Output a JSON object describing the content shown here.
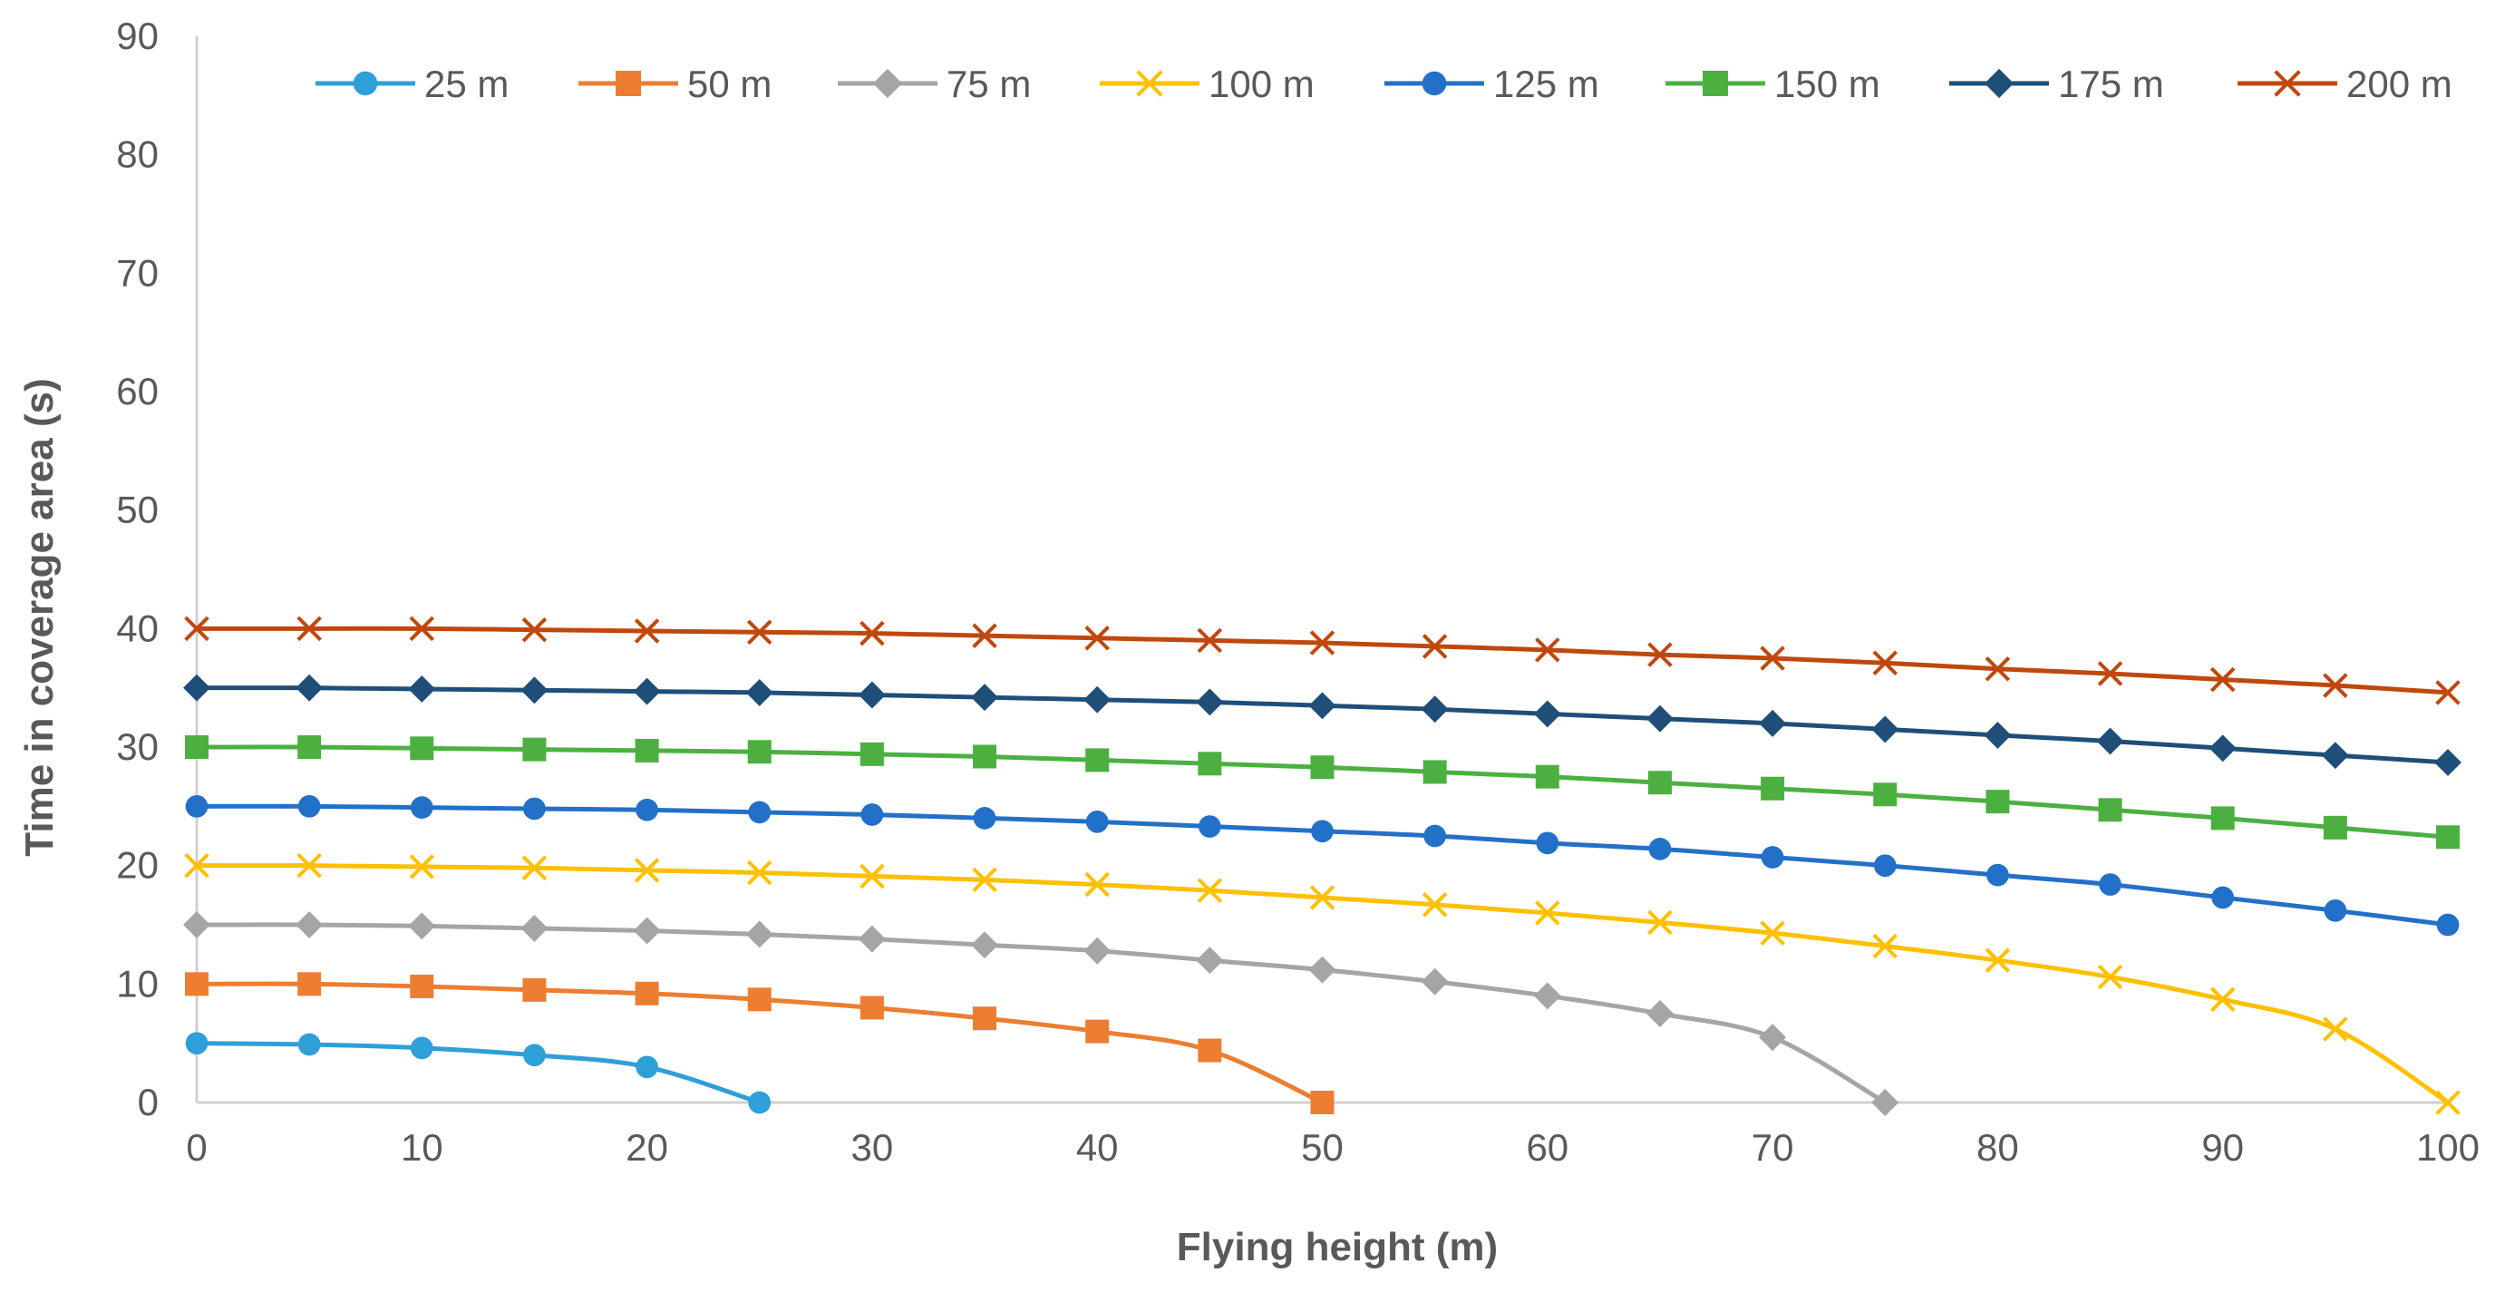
{
  "chart_data": {
    "type": "line",
    "title": "",
    "xlabel": "Flying height (m)",
    "ylabel": "Time in coverage area (s)",
    "xlim": [
      0,
      100
    ],
    "ylim": [
      0,
      90
    ],
    "x_ticks": [
      0,
      10,
      20,
      30,
      40,
      50,
      60,
      70,
      80,
      90,
      100
    ],
    "y_ticks": [
      0,
      10,
      20,
      30,
      40,
      50,
      60,
      70,
      80,
      90
    ],
    "legend_position": "top",
    "grid": false,
    "series": [
      {
        "name": "25 m",
        "color": "#2E9FD8",
        "marker": "circle",
        "x": [
          0,
          5,
          10,
          15,
          20,
          25
        ],
        "values": [
          5.0,
          4.9,
          4.6,
          4.0,
          3.0,
          0
        ]
      },
      {
        "name": "50 m",
        "color": "#ED7D31",
        "marker": "square",
        "x": [
          0,
          5,
          10,
          15,
          20,
          25,
          30,
          35,
          40,
          45,
          50
        ],
        "values": [
          10.0,
          10.0,
          9.8,
          9.5,
          9.2,
          8.7,
          8.0,
          7.1,
          6.0,
          4.4,
          0
        ]
      },
      {
        "name": "75 m",
        "color": "#A5A5A5",
        "marker": "diamond",
        "x": [
          0,
          5,
          10,
          15,
          20,
          25,
          30,
          35,
          40,
          45,
          50,
          55,
          60,
          65,
          70,
          75
        ],
        "values": [
          15.0,
          15.0,
          14.9,
          14.7,
          14.5,
          14.2,
          13.8,
          13.3,
          12.8,
          12.0,
          11.2,
          10.2,
          9.0,
          7.5,
          5.5,
          0
        ]
      },
      {
        "name": "100 m",
        "color": "#FFC000",
        "marker": "x",
        "x": [
          0,
          5,
          10,
          15,
          20,
          25,
          30,
          35,
          40,
          45,
          50,
          55,
          60,
          65,
          70,
          75,
          80,
          85,
          90,
          95,
          100
        ],
        "values": [
          20.0,
          20.0,
          19.9,
          19.8,
          19.6,
          19.4,
          19.1,
          18.8,
          18.4,
          17.9,
          17.3,
          16.7,
          16.0,
          15.2,
          14.3,
          13.2,
          12.0,
          10.6,
          8.7,
          6.2,
          0
        ]
      },
      {
        "name": "125 m",
        "color": "#2370C8",
        "marker": "circle",
        "x": [
          0,
          5,
          10,
          15,
          20,
          25,
          30,
          35,
          40,
          45,
          50,
          55,
          60,
          65,
          70,
          75,
          80,
          85,
          90,
          95,
          100
        ],
        "values": [
          25.0,
          25.0,
          24.9,
          24.8,
          24.7,
          24.5,
          24.3,
          24.0,
          23.7,
          23.3,
          22.9,
          22.5,
          21.9,
          21.4,
          20.7,
          20.0,
          19.2,
          18.4,
          17.3,
          16.2,
          15.0
        ]
      },
      {
        "name": "150 m",
        "color": "#4CB041",
        "marker": "square",
        "x": [
          0,
          5,
          10,
          15,
          20,
          25,
          30,
          35,
          40,
          45,
          50,
          55,
          60,
          65,
          70,
          75,
          80,
          85,
          90,
          95,
          100
        ],
        "values": [
          30.0,
          30.0,
          29.9,
          29.8,
          29.7,
          29.6,
          29.4,
          29.2,
          28.9,
          28.6,
          28.3,
          27.9,
          27.5,
          27.0,
          26.5,
          26.0,
          25.4,
          24.7,
          24.0,
          23.2,
          22.4
        ]
      },
      {
        "name": "175 m",
        "color": "#1F4E79",
        "marker": "diamond",
        "x": [
          0,
          5,
          10,
          15,
          20,
          25,
          30,
          35,
          40,
          45,
          50,
          55,
          60,
          65,
          70,
          75,
          80,
          85,
          90,
          95,
          100
        ],
        "values": [
          35.0,
          35.0,
          34.9,
          34.8,
          34.7,
          34.6,
          34.4,
          34.2,
          34.0,
          33.8,
          33.5,
          33.2,
          32.8,
          32.4,
          32.0,
          31.5,
          31.0,
          30.5,
          29.9,
          29.3,
          28.7
        ]
      },
      {
        "name": "200 m",
        "color": "#C0480C",
        "marker": "x",
        "x": [
          0,
          5,
          10,
          15,
          20,
          25,
          30,
          35,
          40,
          45,
          50,
          55,
          60,
          65,
          70,
          75,
          80,
          85,
          90,
          95,
          100
        ],
        "values": [
          40.0,
          40.0,
          40.0,
          39.9,
          39.8,
          39.7,
          39.6,
          39.4,
          39.2,
          39.0,
          38.8,
          38.5,
          38.2,
          37.8,
          37.5,
          37.1,
          36.6,
          36.2,
          35.7,
          35.2,
          34.6
        ]
      }
    ]
  }
}
